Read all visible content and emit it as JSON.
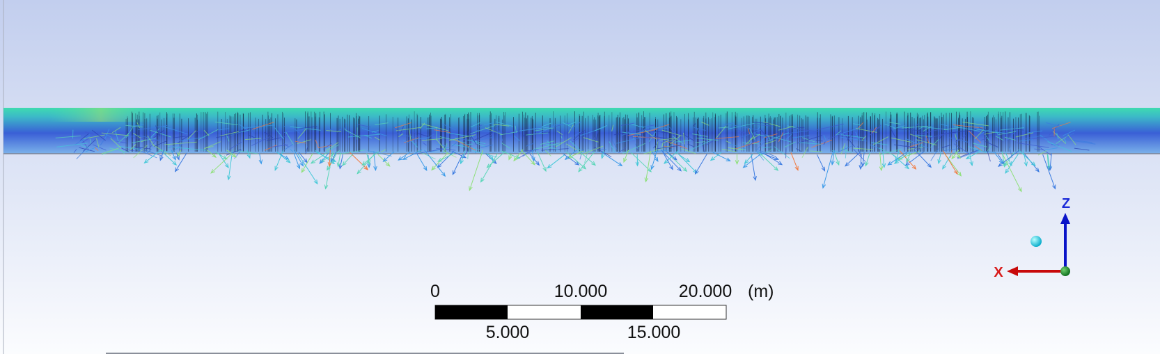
{
  "scale_bar": {
    "top_labels": [
      "0",
      "10.000",
      "20.000"
    ],
    "unit": "(m)",
    "bottom_labels": [
      "5.000",
      "15.000"
    ]
  },
  "triad": {
    "z_label": "Z",
    "x_label": "X"
  }
}
